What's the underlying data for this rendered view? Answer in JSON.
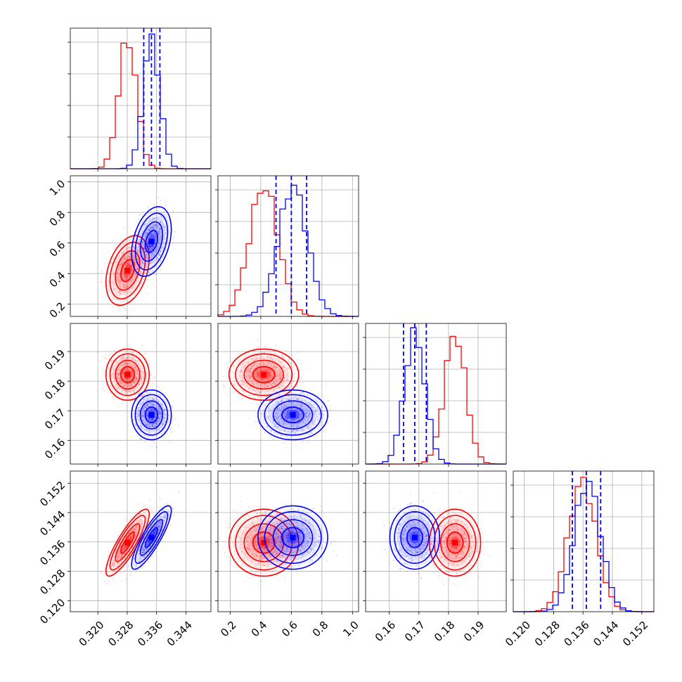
{
  "chart_data": {
    "type": "corner",
    "grid": true,
    "parameters": [
      {
        "ticks": [
          0.32,
          0.328,
          0.336,
          0.344
        ],
        "tick_labels": [
          "0.320",
          "0.328",
          "0.336",
          "0.344"
        ],
        "range": [
          0.3125,
          0.3508
        ]
      },
      {
        "ticks": [
          0.2,
          0.4,
          0.6,
          0.8,
          1.0
        ],
        "tick_labels": [
          "0.2",
          "0.4",
          "0.6",
          "0.8",
          "1.0"
        ],
        "range": [
          0.12,
          1.04
        ]
      },
      {
        "ticks": [
          0.16,
          0.17,
          0.18,
          0.19
        ],
        "tick_labels": [
          "0.16",
          "0.17",
          "0.18",
          "0.19"
        ],
        "range": [
          0.152,
          0.1995
        ]
      },
      {
        "ticks": [
          0.12,
          0.128,
          0.136,
          0.144,
          0.152
        ],
        "tick_labels": [
          "0.120",
          "0.128",
          "0.136",
          "0.144",
          "0.152"
        ],
        "range": [
          0.117,
          0.1553
        ]
      }
    ],
    "series": [
      {
        "color": "#ff0000",
        "means": [
          0.3281,
          0.42,
          0.1822,
          0.1358
        ],
        "stds": [
          0.00245,
          0.095,
          0.0036,
          0.0038
        ],
        "correlations": [
          [
            0,
            1,
            0.35
          ],
          [
            0,
            3,
            0.85
          ],
          [
            2,
            3,
            0.0
          ],
          [
            0,
            2,
            0.0
          ],
          [
            1,
            2,
            0.0
          ],
          [
            1,
            3,
            0.0
          ]
        ]
      },
      {
        "color": "#0000ff",
        "means": [
          0.3346,
          0.61,
          0.1686,
          0.1372
        ],
        "stds": [
          0.00225,
          0.095,
          0.0035,
          0.0036
        ],
        "correlations": [
          [
            0,
            1,
            0.35
          ],
          [
            0,
            3,
            0.85
          ],
          [
            2,
            3,
            0.0
          ],
          [
            0,
            2,
            0.0
          ],
          [
            1,
            2,
            0.0
          ],
          [
            1,
            3,
            0.0
          ]
        ]
      }
    ],
    "quantile_lines": {
      "color": "#0000ff",
      "style": "dashed",
      "values": [
        [
          0.3325,
          0.3346,
          0.3369
        ],
        [
          0.5,
          0.6,
          0.7
        ],
        [
          0.1648,
          0.1686,
          0.1725
        ],
        [
          0.1331,
          0.1369,
          0.1408
        ]
      ]
    }
  }
}
